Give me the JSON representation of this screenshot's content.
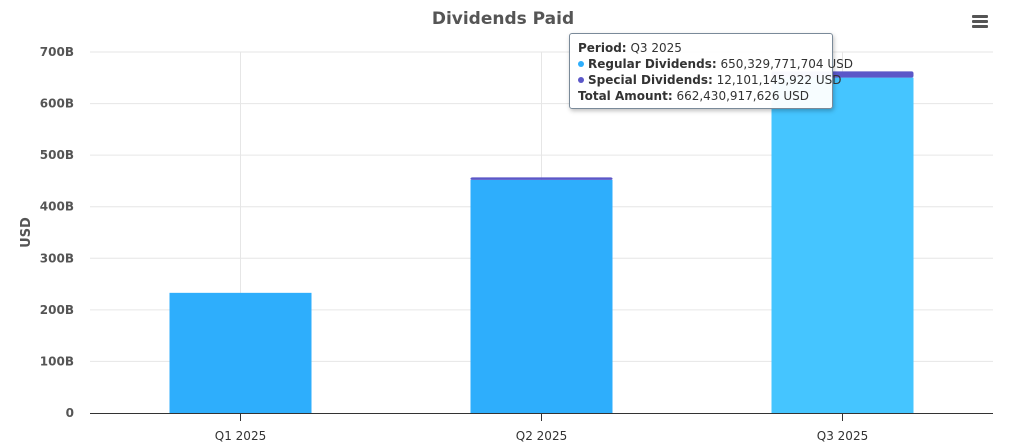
{
  "chart_data": {
    "type": "bar",
    "stacked": true,
    "title": "Dividends Paid",
    "xlabel": "",
    "ylabel": "USD",
    "ylim": [
      0,
      700
    ],
    "yticks": [
      0,
      100,
      200,
      300,
      400,
      500,
      600,
      700
    ],
    "ytick_labels": [
      "0",
      "100B",
      "200B",
      "300B",
      "400B",
      "500B",
      "600B",
      "700B"
    ],
    "grid": true,
    "categories": [
      "Q1 2025",
      "Q2 2025",
      "Q3 2025"
    ],
    "unit": "B",
    "series": [
      {
        "name": "Regular Dividends",
        "color": "#2eaefc",
        "values": [
          233,
          452,
          650.33
        ]
      },
      {
        "name": "Special Dividends",
        "color": "#5b57c8",
        "values": [
          0,
          5,
          12.1
        ]
      }
    ],
    "highlight_color": "#45c5ff",
    "highlighted_index": 2
  },
  "tooltip": {
    "period_label": "Period:",
    "period_value": "Q3 2025",
    "regular_label": "Regular Dividends:",
    "regular_value": "650,329,771,704 USD",
    "special_label": "Special Dividends:",
    "special_value": "12,101,145,922 USD",
    "total_label": "Total Amount:",
    "total_value": "662,430,917,626 USD"
  },
  "menu": {
    "icon": "hamburger-menu-icon"
  }
}
